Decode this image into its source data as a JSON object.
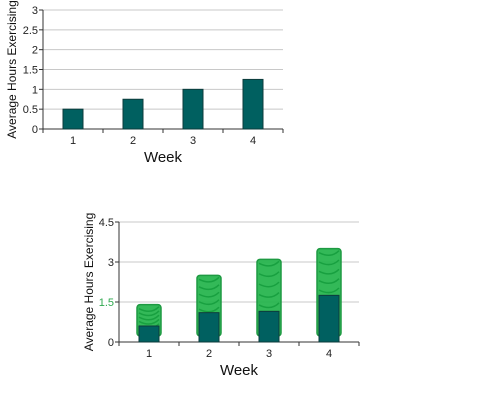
{
  "chart_data": [
    {
      "type": "bar",
      "categories": [
        "1",
        "2",
        "3",
        "4"
      ],
      "values": [
        0.5,
        0.75,
        1.0,
        1.25
      ],
      "xlabel": "Week",
      "ylabel": "Average Hours Exercising",
      "ylim": [
        0,
        3
      ],
      "yticks": [
        "0",
        "0.5",
        "1",
        "1.5",
        "2",
        "2.5",
        "3"
      ],
      "grid": true,
      "bar_color": "#006060"
    },
    {
      "type": "bar",
      "categories": [
        "1",
        "2",
        "3",
        "4"
      ],
      "values": [
        0.6,
        1.1,
        1.15,
        1.75
      ],
      "handdrawn_extension_to": [
        1.4,
        2.5,
        3.1,
        3.5
      ],
      "xlabel": "Week",
      "ylabel": "Average Hours Exercising",
      "ylim": [
        0,
        4.5
      ],
      "yticks": [
        "0",
        "1.5",
        "3",
        "4.5"
      ],
      "highlighted_tick": "1.5",
      "grid": true,
      "bar_color": "#006060",
      "overlay_color": "#22b34a",
      "highlight_color": "#2fa84f"
    }
  ]
}
